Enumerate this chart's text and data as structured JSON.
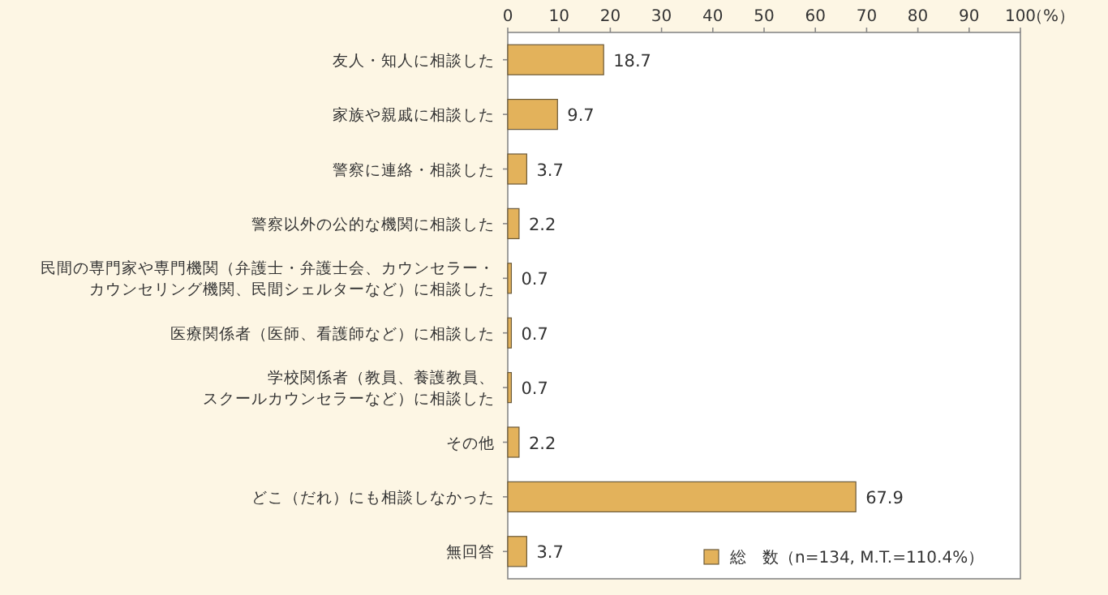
{
  "chart_data": {
    "type": "bar",
    "orientation": "horizontal",
    "categories": [
      "友人・知人に相談した",
      "家族や親戚に相談した",
      "警察に連絡・相談した",
      "警察以外の公的な機関に相談した",
      "民間の専門家や専門機関（弁護士・弁護士会、カウンセラー・カウンセリング機関、民間シェルターなど）に相談した",
      "医療関係者（医師、看護師など）に相談した",
      "学校関係者（教員、養護教員、スクールカウンセラーなど）に相談した",
      "その他",
      "どこ（だれ）にも相談しなかった",
      "無回答"
    ],
    "series": [
      {
        "name": "総　数（n=134, M.T.=110.4%）",
        "color": "#e3b25b",
        "values": [
          18.7,
          9.7,
          3.7,
          2.2,
          0.7,
          0.7,
          0.7,
          2.2,
          67.9,
          3.7
        ]
      }
    ],
    "xlim": [
      0,
      100
    ],
    "xticks": [
      0,
      10,
      20,
      30,
      40,
      50,
      60,
      70,
      80,
      90,
      100
    ],
    "xlabel": "（%）",
    "data_labels": true,
    "legend": "bottom right"
  }
}
